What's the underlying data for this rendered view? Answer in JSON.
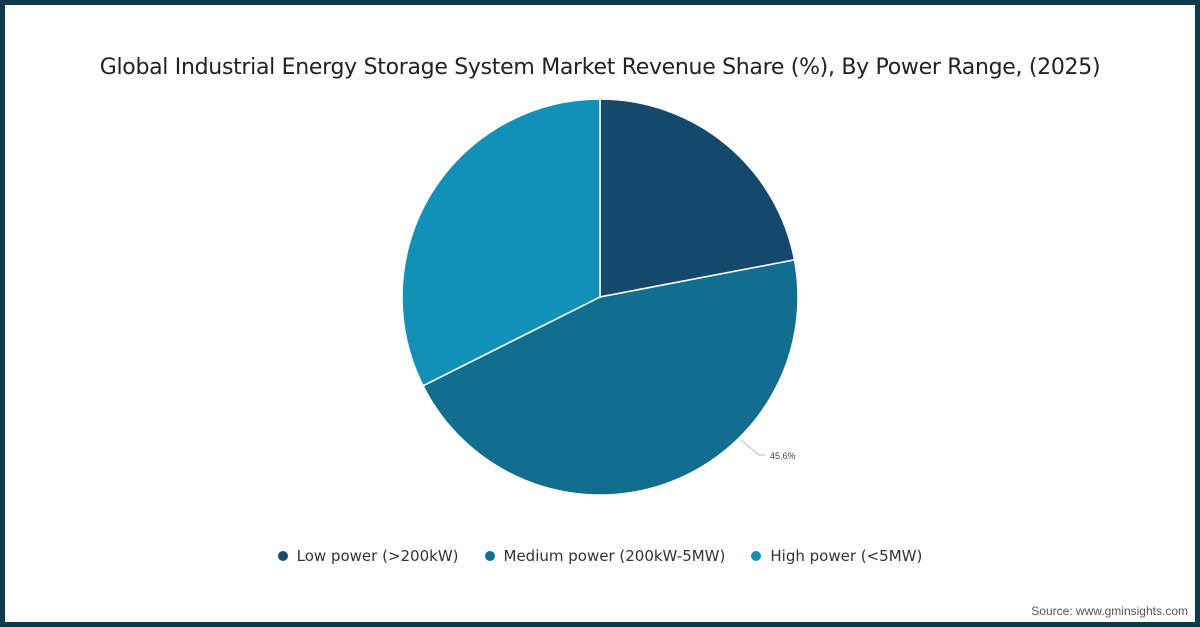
{
  "title": "Global Industrial Energy Storage System Market Revenue Share (%), By Power Range, (2025)",
  "source": "Source: www.gminsights.com",
  "colors": {
    "border": "#0b3a4a",
    "low": "#15496b",
    "medium": "#116e8e",
    "high": "#1190b8"
  },
  "legend": [
    {
      "label": "Low power (>200kW)",
      "color": "#15496b"
    },
    {
      "label": "Medium power (200kW-5MW)",
      "color": "#116e8e"
    },
    {
      "label": "High power (<5MW)",
      "color": "#1190b8"
    }
  ],
  "data_label": "45.6%",
  "chart_data": {
    "type": "pie",
    "title": "Global Industrial Energy Storage System Market Revenue Share (%), By Power Range, (2025)",
    "categories": [
      "Low power (>200kW)",
      "Medium power (200kW-5MW)",
      "High power (<5MW)"
    ],
    "values": [
      22.0,
      45.6,
      32.4
    ],
    "labeled_values": {
      "Medium power (200kW-5MW)": "45.6%"
    },
    "start_angle": "12 o'clock, clockwise",
    "legend_position": "bottom"
  }
}
